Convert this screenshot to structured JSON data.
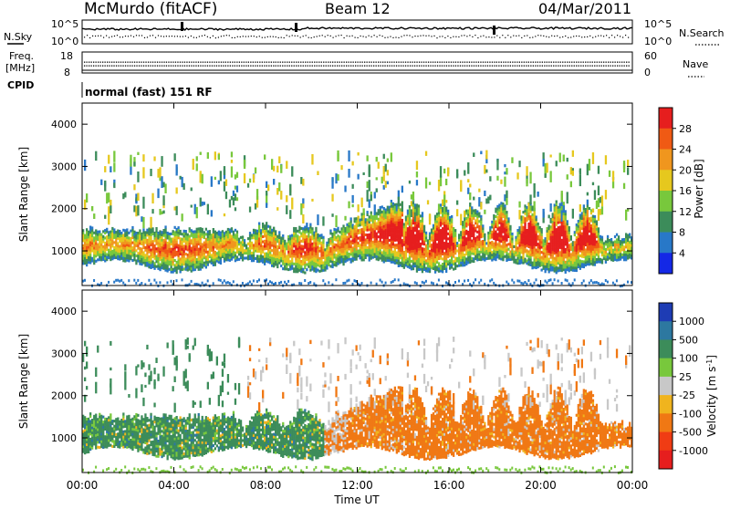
{
  "header": {
    "station": "McMurdo (fitACF)",
    "beam": "Beam 12",
    "date": "04/Mar/2011"
  },
  "noise_panel": {
    "left_label": "N.Sky",
    "right_label": "N.Search",
    "left_ticks": [
      "10^5",
      "10^0"
    ],
    "right_ticks": [
      "10^5",
      "10^0"
    ]
  },
  "freq_panel": {
    "left_label_1": "Freq.",
    "left_label_2": "[MHz]",
    "right_label": "Nave",
    "left_ticks": [
      "18",
      "8"
    ],
    "right_ticks": [
      "60",
      "0"
    ]
  },
  "cpid": {
    "label": "CPID",
    "value": "normal (fast) 151 RF"
  },
  "chart_data": [
    {
      "type": "heatmap",
      "quantity": "Power",
      "ylabel": "Slant Range [km]",
      "ylim": [
        180,
        4500
      ],
      "yticks": [
        "1000",
        "2000",
        "3000",
        "4000"
      ],
      "colorbar_label": "Power [dB]",
      "colorbar_ticks": [
        "4",
        "8",
        "12",
        "16",
        "20",
        "24",
        "28"
      ],
      "colorbar_colors": [
        "#1428e6",
        "#2878c8",
        "#3c8c5a",
        "#78c83c",
        "#e6c81e",
        "#f0961e",
        "#f05a14",
        "#e61e1e"
      ]
    },
    {
      "type": "heatmap",
      "quantity": "Velocity",
      "ylabel": "Slant Range [km]",
      "ylim": [
        180,
        4500
      ],
      "yticks": [
        "1000",
        "2000",
        "3000",
        "4000"
      ],
      "xlabel": "Time UT",
      "xticks": [
        "00:00",
        "04:00",
        "08:00",
        "12:00",
        "16:00",
        "20:00",
        "00:00"
      ],
      "colorbar_label": "Velocity [m s^-1]",
      "colorbar_ticks": [
        "1000",
        "500",
        "100",
        "25",
        "-25",
        "-100",
        "-500",
        "-1000"
      ],
      "colorbar_colors": [
        "#1e3cb4",
        "#2d78a0",
        "#3c8c5a",
        "#78c83c",
        "#c8c8c8",
        "#f0b41e",
        "#f07814",
        "#f03c14",
        "#e61e1e"
      ]
    }
  ]
}
